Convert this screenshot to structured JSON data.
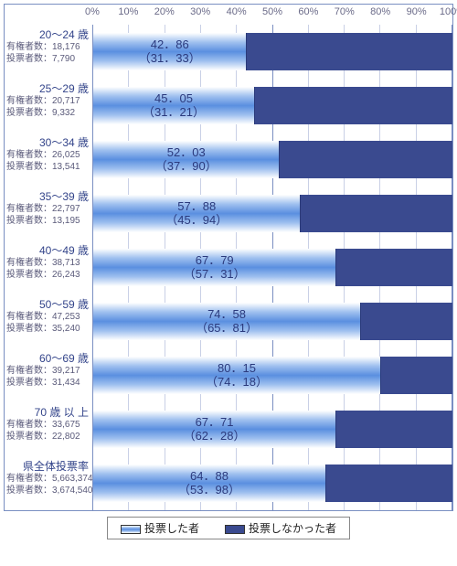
{
  "chart": {
    "type": "stacked-bar-horizontal",
    "xlim": [
      0,
      100
    ],
    "xtick_step": 10,
    "xtick_suffix": "%",
    "grid_color_minor": "#c9d0e6",
    "grid_color_major": "#7a8fc2",
    "border_color": "#7a8fc2",
    "bar_voted_gradient": [
      "#ffffff",
      "#9fc0ef",
      "#5a8fe0",
      "#9fc0ef",
      "#ffffff"
    ],
    "bar_notvoted_color": "#3a4a8f",
    "value_text_color": "#2b3a7d",
    "label_text_color": "#33448a",
    "sublabel_text_color": "#5a5a7a",
    "axis_text_color": "#6a6a88",
    "sublabel_voters_prefix": "有権者数：",
    "sublabel_votes_prefix": "投票者数：",
    "rows": [
      {
        "age": "20～24 歳",
        "voters": "18,176",
        "votes": "7,790",
        "pct": 42.86,
        "prev": 31.33
      },
      {
        "age": "25～29 歳",
        "voters": "20,717",
        "votes": "9,332",
        "pct": 45.05,
        "prev": 31.21
      },
      {
        "age": "30～34 歳",
        "voters": "26,025",
        "votes": "13,541",
        "pct": 52.03,
        "prev": 37.9
      },
      {
        "age": "35～39 歳",
        "voters": "22,797",
        "votes": "13,195",
        "pct": 57.88,
        "prev": 45.94
      },
      {
        "age": "40～49 歳",
        "voters": "38,713",
        "votes": "26,243",
        "pct": 67.79,
        "prev": 57.31
      },
      {
        "age": "50～59 歳",
        "voters": "47,253",
        "votes": "35,240",
        "pct": 74.58,
        "prev": 65.81
      },
      {
        "age": "60～69 歳",
        "voters": "39,217",
        "votes": "31,434",
        "pct": 80.15,
        "prev": 74.18
      },
      {
        "age": "70 歳 以 上",
        "voters": "33,675",
        "votes": "22,802",
        "pct": 67.71,
        "prev": 62.28
      },
      {
        "age": "県全体投票率",
        "voters": "5,663,374",
        "votes": "3,674,540",
        "pct": 64.88,
        "prev": 53.98
      }
    ],
    "legend": {
      "voted": "投票した者",
      "notvoted": "投票しなかった者"
    }
  }
}
